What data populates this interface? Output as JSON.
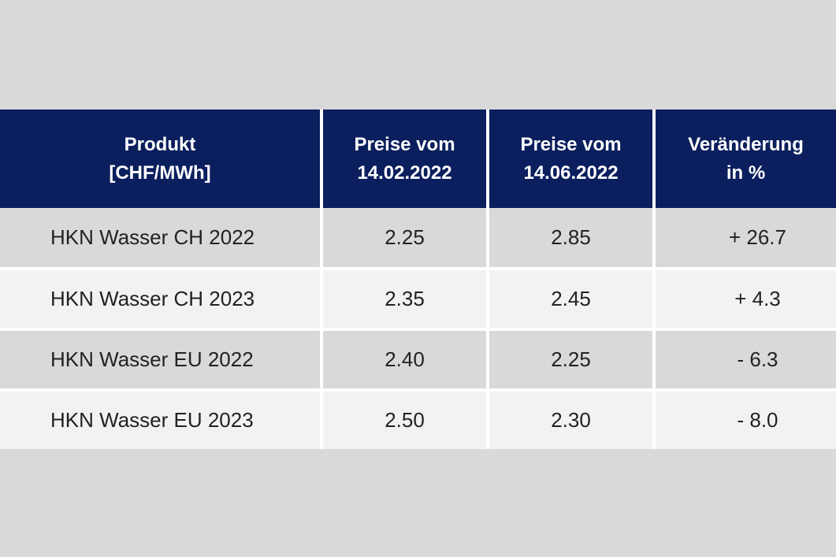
{
  "table": {
    "headers": [
      {
        "line1": "Produkt",
        "line2": "[CHF/MWh]"
      },
      {
        "line1": "Preise vom",
        "line2": "14.02.2022"
      },
      {
        "line1": "Preise vom",
        "line2": "14.06.2022"
      },
      {
        "line1": "Veränderung",
        "line2": "in %"
      }
    ],
    "rows": [
      {
        "product": "HKN Wasser CH 2022",
        "price_feb": "2.25",
        "price_jun": "2.85",
        "change": "+ 26.7"
      },
      {
        "product": "HKN Wasser CH 2023",
        "price_feb": "2.35",
        "price_jun": "2.45",
        "change": "+ 4.3"
      },
      {
        "product": "HKN Wasser EU 2022",
        "price_feb": "2.40",
        "price_jun": "2.25",
        "change": "- 6.3"
      },
      {
        "product": "HKN Wasser EU 2023",
        "price_feb": "2.50",
        "price_jun": "2.30",
        "change": "- 8.0"
      }
    ]
  },
  "colors": {
    "header_bg": "#0b1f5e",
    "header_text": "#ffffff",
    "row_dark": "#d9d9d9",
    "row_light": "#f2f2f2",
    "page_bg": "#d9d9d9"
  }
}
